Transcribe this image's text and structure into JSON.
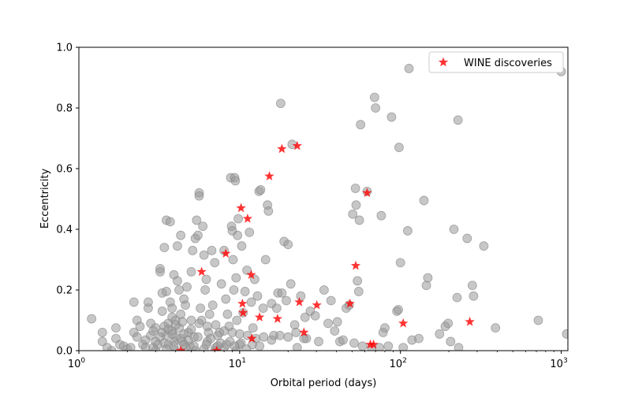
{
  "chart_data": {
    "type": "scatter",
    "title": "",
    "xlabel": "Orbital period (days)",
    "ylabel": "Eccentricity",
    "xscale": "log",
    "xlim": [
      1,
      1100
    ],
    "ylim": [
      0,
      1.0
    ],
    "grid": false,
    "legend_position": "top-right",
    "x_ticks": [
      {
        "value": 1,
        "base": "10",
        "exp": "0"
      },
      {
        "value": 10,
        "base": "10",
        "exp": "1"
      },
      {
        "value": 100,
        "base": "10",
        "exp": "2"
      },
      {
        "value": 1000,
        "base": "10",
        "exp": "3"
      }
    ],
    "y_ticks": [
      {
        "value": 0.0,
        "label": "0.0"
      },
      {
        "value": 0.2,
        "label": "0.2"
      },
      {
        "value": 0.4,
        "label": "0.4"
      },
      {
        "value": 0.6,
        "label": "0.6"
      },
      {
        "value": 0.8,
        "label": "0.8"
      },
      {
        "value": 1.0,
        "label": "1.0"
      }
    ],
    "series": [
      {
        "color": "#999999",
        "marker": "circle",
        "points": [
          [
            1.2,
            0.105
          ],
          [
            1.4,
            0.06
          ],
          [
            1.4,
            0.03
          ],
          [
            1.5,
            0.01
          ],
          [
            1.6,
            0.0
          ],
          [
            1.7,
            0.04
          ],
          [
            1.7,
            0.075
          ],
          [
            1.8,
            0.02
          ],
          [
            1.9,
            0.015
          ],
          [
            2.0,
            0.005
          ],
          [
            2.1,
            0.01
          ],
          [
            2.2,
            0.06
          ],
          [
            2.2,
            0.16
          ],
          [
            2.3,
            0.1
          ],
          [
            2.3,
            0.045
          ],
          [
            2.4,
            0.08
          ],
          [
            2.5,
            0.02
          ],
          [
            2.6,
            0.01
          ],
          [
            2.6,
            0.035
          ],
          [
            2.7,
            0.16
          ],
          [
            2.7,
            0.14
          ],
          [
            2.8,
            0.09
          ],
          [
            2.8,
            0.05
          ],
          [
            2.9,
            0.01
          ],
          [
            3.0,
            0.075
          ],
          [
            3.0,
            0.03
          ],
          [
            3.1,
            0.02
          ],
          [
            3.2,
            0.27
          ],
          [
            3.2,
            0.26
          ],
          [
            3.3,
            0.19
          ],
          [
            3.3,
            0.13
          ],
          [
            3.4,
            0.34
          ],
          [
            3.4,
            0.08
          ],
          [
            3.5,
            0.43
          ],
          [
            3.5,
            0.195
          ],
          [
            3.5,
            0.05
          ],
          [
            3.6,
            0.09
          ],
          [
            3.6,
            0.02
          ],
          [
            3.7,
            0.425
          ],
          [
            3.7,
            0.16
          ],
          [
            3.8,
            0.14
          ],
          [
            3.8,
            0.11
          ],
          [
            3.8,
            0.065
          ],
          [
            3.9,
            0.25
          ],
          [
            3.9,
            0.03
          ],
          [
            4.0,
            0.1
          ],
          [
            4.0,
            0.045
          ],
          [
            4.1,
            0.345
          ],
          [
            4.1,
            0.23
          ],
          [
            4.2,
            0.2
          ],
          [
            4.2,
            0.075
          ],
          [
            4.3,
            0.38
          ],
          [
            4.3,
            0.12
          ],
          [
            4.4,
            0.03
          ],
          [
            4.5,
            0.17
          ],
          [
            4.5,
            0.055
          ],
          [
            4.6,
            0.15
          ],
          [
            4.7,
            0.21
          ],
          [
            4.8,
            0.06
          ],
          [
            4.9,
            0.015
          ],
          [
            5.0,
            0.26
          ],
          [
            5.0,
            0.1
          ],
          [
            5.1,
            0.33
          ],
          [
            5.2,
            0.045
          ],
          [
            5.3,
            0.37
          ],
          [
            5.4,
            0.43
          ],
          [
            5.5,
            0.38
          ],
          [
            5.6,
            0.52
          ],
          [
            5.6,
            0.51
          ],
          [
            5.7,
            0.14
          ],
          [
            5.8,
            0.1
          ],
          [
            5.9,
            0.41
          ],
          [
            6.0,
            0.315
          ],
          [
            6.1,
            0.2
          ],
          [
            6.2,
            0.235
          ],
          [
            6.3,
            0.03
          ],
          [
            6.4,
            0.06
          ],
          [
            6.5,
            0.12
          ],
          [
            6.7,
            0.33
          ],
          [
            6.8,
            0.15
          ],
          [
            7.0,
            0.29
          ],
          [
            7.1,
            0.01
          ],
          [
            7.3,
            0.05
          ],
          [
            7.5,
            0.06
          ],
          [
            7.7,
            0.22
          ],
          [
            8.0,
            0.33
          ],
          [
            8.2,
            0.17
          ],
          [
            8.4,
            0.12
          ],
          [
            8.6,
            0.08
          ],
          [
            8.8,
            0.57
          ],
          [
            8.9,
            0.41
          ],
          [
            9.0,
            0.395
          ],
          [
            9.1,
            0.3
          ],
          [
            9.2,
            0.2
          ],
          [
            9.3,
            0.57
          ],
          [
            9.4,
            0.56
          ],
          [
            9.5,
            0.24
          ],
          [
            9.6,
            0.1
          ],
          [
            9.7,
            0.38
          ],
          [
            9.8,
            0.435
          ],
          [
            10.0,
            0.02
          ],
          [
            10.3,
            0.345
          ],
          [
            10.5,
            0.125
          ],
          [
            10.8,
            0.195
          ],
          [
            11.1,
            0.265
          ],
          [
            11.5,
            0.39
          ],
          [
            11.8,
            0.16
          ],
          [
            12.1,
            0.075
          ],
          [
            12.4,
            0.235
          ],
          [
            12.9,
            0.18
          ],
          [
            13.2,
            0.525
          ],
          [
            13.5,
            0.53
          ],
          [
            14.0,
            0.14
          ],
          [
            14.5,
            0.3
          ],
          [
            14.9,
            0.48
          ],
          [
            15.1,
            0.46
          ],
          [
            15.8,
            0.155
          ],
          [
            16.3,
            0.05
          ],
          [
            17.0,
            0.14
          ],
          [
            17.3,
            0.19
          ],
          [
            18.0,
            0.815
          ],
          [
            18.3,
            0.19
          ],
          [
            18.9,
            0.36
          ],
          [
            19.5,
            0.165
          ],
          [
            20.0,
            0.35
          ],
          [
            20.8,
            0.22
          ],
          [
            21.2,
            0.68
          ],
          [
            22.0,
            0.085
          ],
          [
            22.8,
            0.01
          ],
          [
            24.0,
            0.18
          ],
          [
            25.5,
            0.11
          ],
          [
            26.0,
            0.04
          ],
          [
            27.5,
            0.13
          ],
          [
            29.5,
            0.115
          ],
          [
            31.0,
            0.03
          ],
          [
            33.5,
            0.2
          ],
          [
            35.5,
            0.09
          ],
          [
            37.0,
            0.165
          ],
          [
            39.0,
            0.065
          ],
          [
            40.5,
            0.095
          ],
          [
            42.0,
            0.03
          ],
          [
            44.0,
            0.035
          ],
          [
            46.0,
            0.14
          ],
          [
            48.0,
            0.15
          ],
          [
            50.5,
            0.45
          ],
          [
            51.5,
            0.025
          ],
          [
            52.5,
            0.535
          ],
          [
            53.0,
            0.48
          ],
          [
            54.0,
            0.23
          ],
          [
            55.0,
            0.195
          ],
          [
            55.5,
            0.43
          ],
          [
            56.5,
            0.745
          ],
          [
            58.0,
            0.015
          ],
          [
            62.0,
            0.525
          ],
          [
            66.0,
            0.01
          ],
          [
            69.0,
            0.835
          ],
          [
            70.0,
            0.8
          ],
          [
            74.0,
            0.01
          ],
          [
            76.0,
            0.445
          ],
          [
            78.0,
            0.06
          ],
          [
            80.0,
            0.075
          ],
          [
            84.0,
            0.015
          ],
          [
            88.0,
            0.77
          ],
          [
            95.0,
            0.13
          ],
          [
            97.0,
            0.135
          ],
          [
            98.0,
            0.67
          ],
          [
            100.0,
            0.29
          ],
          [
            104.0,
            0.01
          ],
          [
            111.0,
            0.395
          ],
          [
            113.0,
            0.93
          ],
          [
            118.0,
            0.035
          ],
          [
            130.0,
            0.04
          ],
          [
            140.0,
            0.495
          ],
          [
            145.0,
            0.215
          ],
          [
            148.0,
            0.24
          ],
          [
            175.0,
            0.055
          ],
          [
            190.0,
            0.08
          ],
          [
            198.0,
            0.09
          ],
          [
            205.0,
            0.03
          ],
          [
            215.0,
            0.4
          ],
          [
            225.0,
            0.175
          ],
          [
            228.0,
            0.76
          ],
          [
            230.0,
            0.01
          ],
          [
            260.0,
            0.37
          ],
          [
            280.0,
            0.215
          ],
          [
            285.0,
            0.18
          ],
          [
            330.0,
            0.345
          ],
          [
            390.0,
            0.075
          ],
          [
            720.0,
            0.1
          ],
          [
            1000.0,
            0.92
          ],
          [
            1080.0,
            0.055
          ],
          [
            3.3,
            0.06
          ],
          [
            3.6,
            0.07
          ],
          [
            4.0,
            0.085
          ],
          [
            4.4,
            0.095
          ],
          [
            5.0,
            0.07
          ],
          [
            5.6,
            0.09
          ],
          [
            6.3,
            0.08
          ],
          [
            7.1,
            0.085
          ],
          [
            8.0,
            0.065
          ],
          [
            9.0,
            0.06
          ],
          [
            10.0,
            0.055
          ],
          [
            11.2,
            0.05
          ],
          [
            12.6,
            0.04
          ],
          [
            14.1,
            0.045
          ],
          [
            15.8,
            0.035
          ],
          [
            17.8,
            0.05
          ],
          [
            20.0,
            0.045
          ],
          [
            22.4,
            0.06
          ],
          [
            25.1,
            0.04
          ],
          [
            3.0,
            0.0
          ],
          [
            3.5,
            0.005
          ],
          [
            4.0,
            0.0
          ],
          [
            4.6,
            0.01
          ],
          [
            5.3,
            0.0
          ],
          [
            6.0,
            0.005
          ],
          [
            7.0,
            0.0
          ],
          [
            8.0,
            0.01
          ],
          [
            9.5,
            0.0
          ],
          [
            11.0,
            0.005
          ],
          [
            3.2,
            0.045
          ],
          [
            3.8,
            0.055
          ],
          [
            4.3,
            0.04
          ],
          [
            4.8,
            0.035
          ],
          [
            5.5,
            0.045
          ],
          [
            6.6,
            0.04
          ],
          [
            7.6,
            0.025
          ],
          [
            8.7,
            0.03
          ],
          [
            10.2,
            0.025
          ],
          [
            12.0,
            0.02
          ],
          [
            2.9,
            0.065
          ],
          [
            3.4,
            0.025
          ],
          [
            3.9,
            0.015
          ],
          [
            4.5,
            0.02
          ],
          [
            5.2,
            0.015
          ],
          [
            6.2,
            0.02
          ],
          [
            7.3,
            0.015
          ],
          [
            8.3,
            0.02
          ],
          [
            9.3,
            0.015
          ],
          [
            13.3,
            0.015
          ]
        ]
      },
      {
        "name": "WINE discoveries",
        "color": "#ff0000",
        "marker": "star",
        "points": [
          [
            4.3,
            0.0
          ],
          [
            5.8,
            0.26
          ],
          [
            7.2,
            0.0
          ],
          [
            8.2,
            0.32
          ],
          [
            10.2,
            0.47
          ],
          [
            10.4,
            0.155
          ],
          [
            10.5,
            0.125
          ],
          [
            11.2,
            0.435
          ],
          [
            11.8,
            0.25
          ],
          [
            11.9,
            0.04
          ],
          [
            13.3,
            0.11
          ],
          [
            15.3,
            0.575
          ],
          [
            17.2,
            0.105
          ],
          [
            18.3,
            0.665
          ],
          [
            22.8,
            0.675
          ],
          [
            23.5,
            0.16
          ],
          [
            25.1,
            0.06
          ],
          [
            30.2,
            0.15
          ],
          [
            48.5,
            0.155
          ],
          [
            52.7,
            0.28
          ],
          [
            62.0,
            0.52
          ],
          [
            65.0,
            0.02
          ],
          [
            68.0,
            0.02
          ],
          [
            104.0,
            0.09
          ],
          [
            270.0,
            0.095
          ]
        ]
      }
    ]
  }
}
